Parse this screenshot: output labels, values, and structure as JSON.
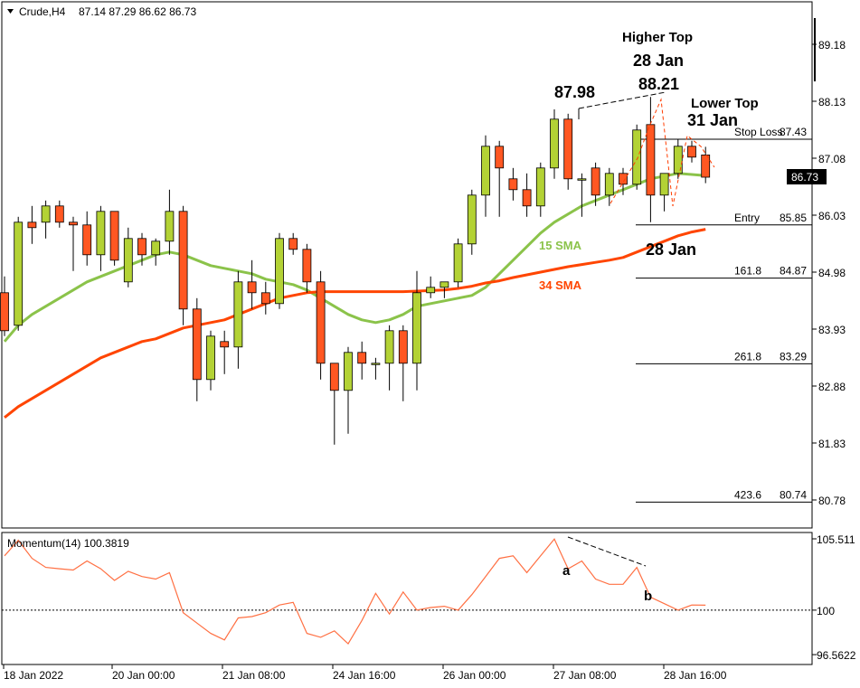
{
  "header": {
    "symbol": "Crude,H4",
    "ohlc": "87.14 87.29 86.62 86.73"
  },
  "price_axis_ticks": [
    "89.18",
    "88.13",
    "87.08",
    "86.03",
    "84.98",
    "83.93",
    "82.88",
    "81.83",
    "80.78"
  ],
  "current_price": "86.73",
  "time_axis_labels": [
    "18 Jan 2022",
    "20 Jan 00:00",
    "21 Jan 08:00",
    "24 Jan 16:00",
    "26 Jan 00:00",
    "27 Jan 08:00",
    "28 Jan 16:00"
  ],
  "momentum": {
    "label": "Momentum(14) 100.3819",
    "ticks": [
      "105.511",
      "100",
      "96.5622"
    ],
    "baseline": 100
  },
  "annotations": {
    "higher_top_title": "Higher Top",
    "higher_top_date": "28 Jan",
    "higher_top_price": "88.21",
    "prev_top_price": "87.98",
    "lower_top_title": "Lower Top",
    "lower_top_date": "31 Jan",
    "date_28jan": "28 Jan",
    "sma15_label": "15 SMA",
    "sma34_label": "34 SMA",
    "momentum_a": "a",
    "momentum_b": "b"
  },
  "levels": [
    {
      "name": "Stop Loss",
      "value": "87.43"
    },
    {
      "name": "Entry",
      "value": "85.85"
    },
    {
      "name": "161.8",
      "value": "84.87"
    },
    {
      "name": "261.8",
      "value": "83.29"
    },
    {
      "name": "423.6",
      "value": "80.74"
    }
  ],
  "colors": {
    "bull": "#b3d235",
    "bear": "#ff5722",
    "sma15": "#8bc34a",
    "sma34": "#ff4500",
    "momentum": "#ff7043",
    "annotation_sma15": "#8bc34a",
    "annotation_sma34": "#ff4500"
  },
  "chart_data": {
    "type": "candlestick",
    "price_range": [
      80.3,
      90.0
    ],
    "candles": [
      {
        "o": 84.6,
        "h": 84.9,
        "l": 83.8,
        "c": 83.9
      },
      {
        "o": 84.0,
        "h": 86.0,
        "l": 83.9,
        "c": 85.9
      },
      {
        "o": 85.9,
        "h": 86.2,
        "l": 85.5,
        "c": 85.8
      },
      {
        "o": 85.9,
        "h": 86.3,
        "l": 85.6,
        "c": 86.2
      },
      {
        "o": 86.2,
        "h": 86.3,
        "l": 85.8,
        "c": 85.9
      },
      {
        "o": 85.9,
        "h": 86.0,
        "l": 85.0,
        "c": 85.85
      },
      {
        "o": 85.85,
        "h": 86.1,
        "l": 85.1,
        "c": 85.3
      },
      {
        "o": 85.3,
        "h": 86.2,
        "l": 85.0,
        "c": 86.1
      },
      {
        "o": 86.1,
        "h": 86.1,
        "l": 85.1,
        "c": 85.2
      },
      {
        "o": 84.8,
        "h": 85.8,
        "l": 84.7,
        "c": 85.6
      },
      {
        "o": 85.6,
        "h": 85.7,
        "l": 85.1,
        "c": 85.3
      },
      {
        "o": 85.3,
        "h": 85.6,
        "l": 85.1,
        "c": 85.55
      },
      {
        "o": 85.55,
        "h": 86.5,
        "l": 85.3,
        "c": 86.1
      },
      {
        "o": 86.1,
        "h": 86.2,
        "l": 84.0,
        "c": 84.3
      },
      {
        "o": 84.3,
        "h": 84.5,
        "l": 82.6,
        "c": 83.0
      },
      {
        "o": 83.0,
        "h": 83.9,
        "l": 82.8,
        "c": 83.8
      },
      {
        "o": 83.7,
        "h": 83.9,
        "l": 83.1,
        "c": 83.6
      },
      {
        "o": 83.6,
        "h": 85.0,
        "l": 83.2,
        "c": 84.8
      },
      {
        "o": 84.8,
        "h": 85.2,
        "l": 84.3,
        "c": 84.6
      },
      {
        "o": 84.6,
        "h": 84.8,
        "l": 84.2,
        "c": 84.4
      },
      {
        "o": 84.4,
        "h": 85.7,
        "l": 84.3,
        "c": 85.6
      },
      {
        "o": 85.6,
        "h": 85.7,
        "l": 85.3,
        "c": 85.4
      },
      {
        "o": 85.4,
        "h": 85.5,
        "l": 84.6,
        "c": 84.8
      },
      {
        "o": 84.8,
        "h": 85.0,
        "l": 83.0,
        "c": 83.3
      },
      {
        "o": 83.3,
        "h": 83.3,
        "l": 81.8,
        "c": 82.8
      },
      {
        "o": 82.8,
        "h": 83.6,
        "l": 82.0,
        "c": 83.5
      },
      {
        "o": 83.5,
        "h": 83.7,
        "l": 83.0,
        "c": 83.3
      },
      {
        "o": 83.3,
        "h": 83.4,
        "l": 83.0,
        "c": 83.3
      },
      {
        "o": 83.3,
        "h": 84.0,
        "l": 82.8,
        "c": 83.9
      },
      {
        "o": 83.9,
        "h": 84.0,
        "l": 82.6,
        "c": 83.3
      },
      {
        "o": 83.3,
        "h": 85.0,
        "l": 82.8,
        "c": 84.6
      },
      {
        "o": 84.6,
        "h": 84.9,
        "l": 84.5,
        "c": 84.7
      },
      {
        "o": 84.7,
        "h": 84.8,
        "l": 84.5,
        "c": 84.8
      },
      {
        "o": 84.8,
        "h": 85.6,
        "l": 84.7,
        "c": 85.5
      },
      {
        "o": 85.5,
        "h": 86.5,
        "l": 85.3,
        "c": 86.4
      },
      {
        "o": 86.4,
        "h": 87.5,
        "l": 86.0,
        "c": 87.3
      },
      {
        "o": 87.3,
        "h": 87.4,
        "l": 86.0,
        "c": 86.9
      },
      {
        "o": 86.7,
        "h": 86.9,
        "l": 86.3,
        "c": 86.5
      },
      {
        "o": 86.5,
        "h": 86.8,
        "l": 86.0,
        "c": 86.2
      },
      {
        "o": 86.2,
        "h": 87.0,
        "l": 86.0,
        "c": 86.9
      },
      {
        "o": 86.9,
        "h": 87.98,
        "l": 86.7,
        "c": 87.8
      },
      {
        "o": 87.8,
        "h": 87.9,
        "l": 86.5,
        "c": 86.7
      },
      {
        "o": 86.7,
        "h": 86.8,
        "l": 86.0,
        "c": 86.7
      },
      {
        "o": 86.9,
        "h": 87.0,
        "l": 86.2,
        "c": 86.4
      },
      {
        "o": 86.4,
        "h": 86.9,
        "l": 86.2,
        "c": 86.8
      },
      {
        "o": 86.8,
        "h": 86.9,
        "l": 86.4,
        "c": 86.6
      },
      {
        "o": 86.6,
        "h": 87.7,
        "l": 86.5,
        "c": 87.6
      },
      {
        "o": 87.7,
        "h": 88.21,
        "l": 85.9,
        "c": 86.4
      },
      {
        "o": 86.4,
        "h": 86.8,
        "l": 86.1,
        "c": 86.8
      },
      {
        "o": 86.8,
        "h": 87.43,
        "l": 86.7,
        "c": 87.3
      },
      {
        "o": 87.3,
        "h": 87.4,
        "l": 87.0,
        "c": 87.1
      },
      {
        "o": 87.14,
        "h": 87.29,
        "l": 86.62,
        "c": 86.73
      }
    ],
    "series": [
      {
        "name": "15 SMA",
        "values": [
          83.7,
          84.0,
          84.2,
          84.35,
          84.5,
          84.65,
          84.8,
          84.9,
          85.0,
          85.1,
          85.2,
          85.3,
          85.35,
          85.3,
          85.2,
          85.1,
          85.05,
          85.0,
          84.95,
          84.85,
          84.8,
          84.75,
          84.65,
          84.5,
          84.35,
          84.2,
          84.1,
          84.05,
          84.1,
          84.2,
          84.35,
          84.4,
          84.45,
          84.5,
          84.55,
          84.7,
          84.95,
          85.2,
          85.45,
          85.7,
          85.9,
          86.05,
          86.2,
          86.3,
          86.4,
          86.5,
          86.6,
          86.7,
          86.75,
          86.8,
          86.78,
          86.76
        ]
      },
      {
        "name": "34 SMA",
        "values": [
          82.3,
          82.5,
          82.65,
          82.8,
          82.95,
          83.1,
          83.25,
          83.4,
          83.5,
          83.6,
          83.7,
          83.75,
          83.85,
          83.95,
          84.0,
          84.05,
          84.1,
          84.2,
          84.3,
          84.4,
          84.5,
          84.55,
          84.6,
          84.62,
          84.62,
          84.62,
          84.62,
          84.62,
          84.62,
          84.62,
          84.63,
          84.64,
          84.65,
          84.68,
          84.72,
          84.78,
          84.82,
          84.88,
          84.93,
          84.98,
          85.03,
          85.08,
          85.12,
          85.16,
          85.2,
          85.25,
          85.35,
          85.45,
          85.55,
          85.65,
          85.72,
          85.77
        ]
      },
      {
        "name": "Momentum(14)",
        "values": [
          104.2,
          105.4,
          104.0,
          103.3,
          103.2,
          103.1,
          103.8,
          103.2,
          102.3,
          103.0,
          102.6,
          102.4,
          102.9,
          99.8,
          99.0,
          98.2,
          97.7,
          99.4,
          99.5,
          99.8,
          100.4,
          100.6,
          98.2,
          97.9,
          98.4,
          97.4,
          99.2,
          101.3,
          99.7,
          101.4,
          100.0,
          100.2,
          100.3,
          100.0,
          101.2,
          102.6,
          104.0,
          104.2,
          102.9,
          104.2,
          105.5,
          103.2,
          103.8,
          102.4,
          102.0,
          102.0,
          103.3,
          101.0,
          100.5,
          100.0,
          100.4,
          100.38
        ]
      }
    ],
    "momentum_range": [
      95.8,
      106.0
    ]
  }
}
